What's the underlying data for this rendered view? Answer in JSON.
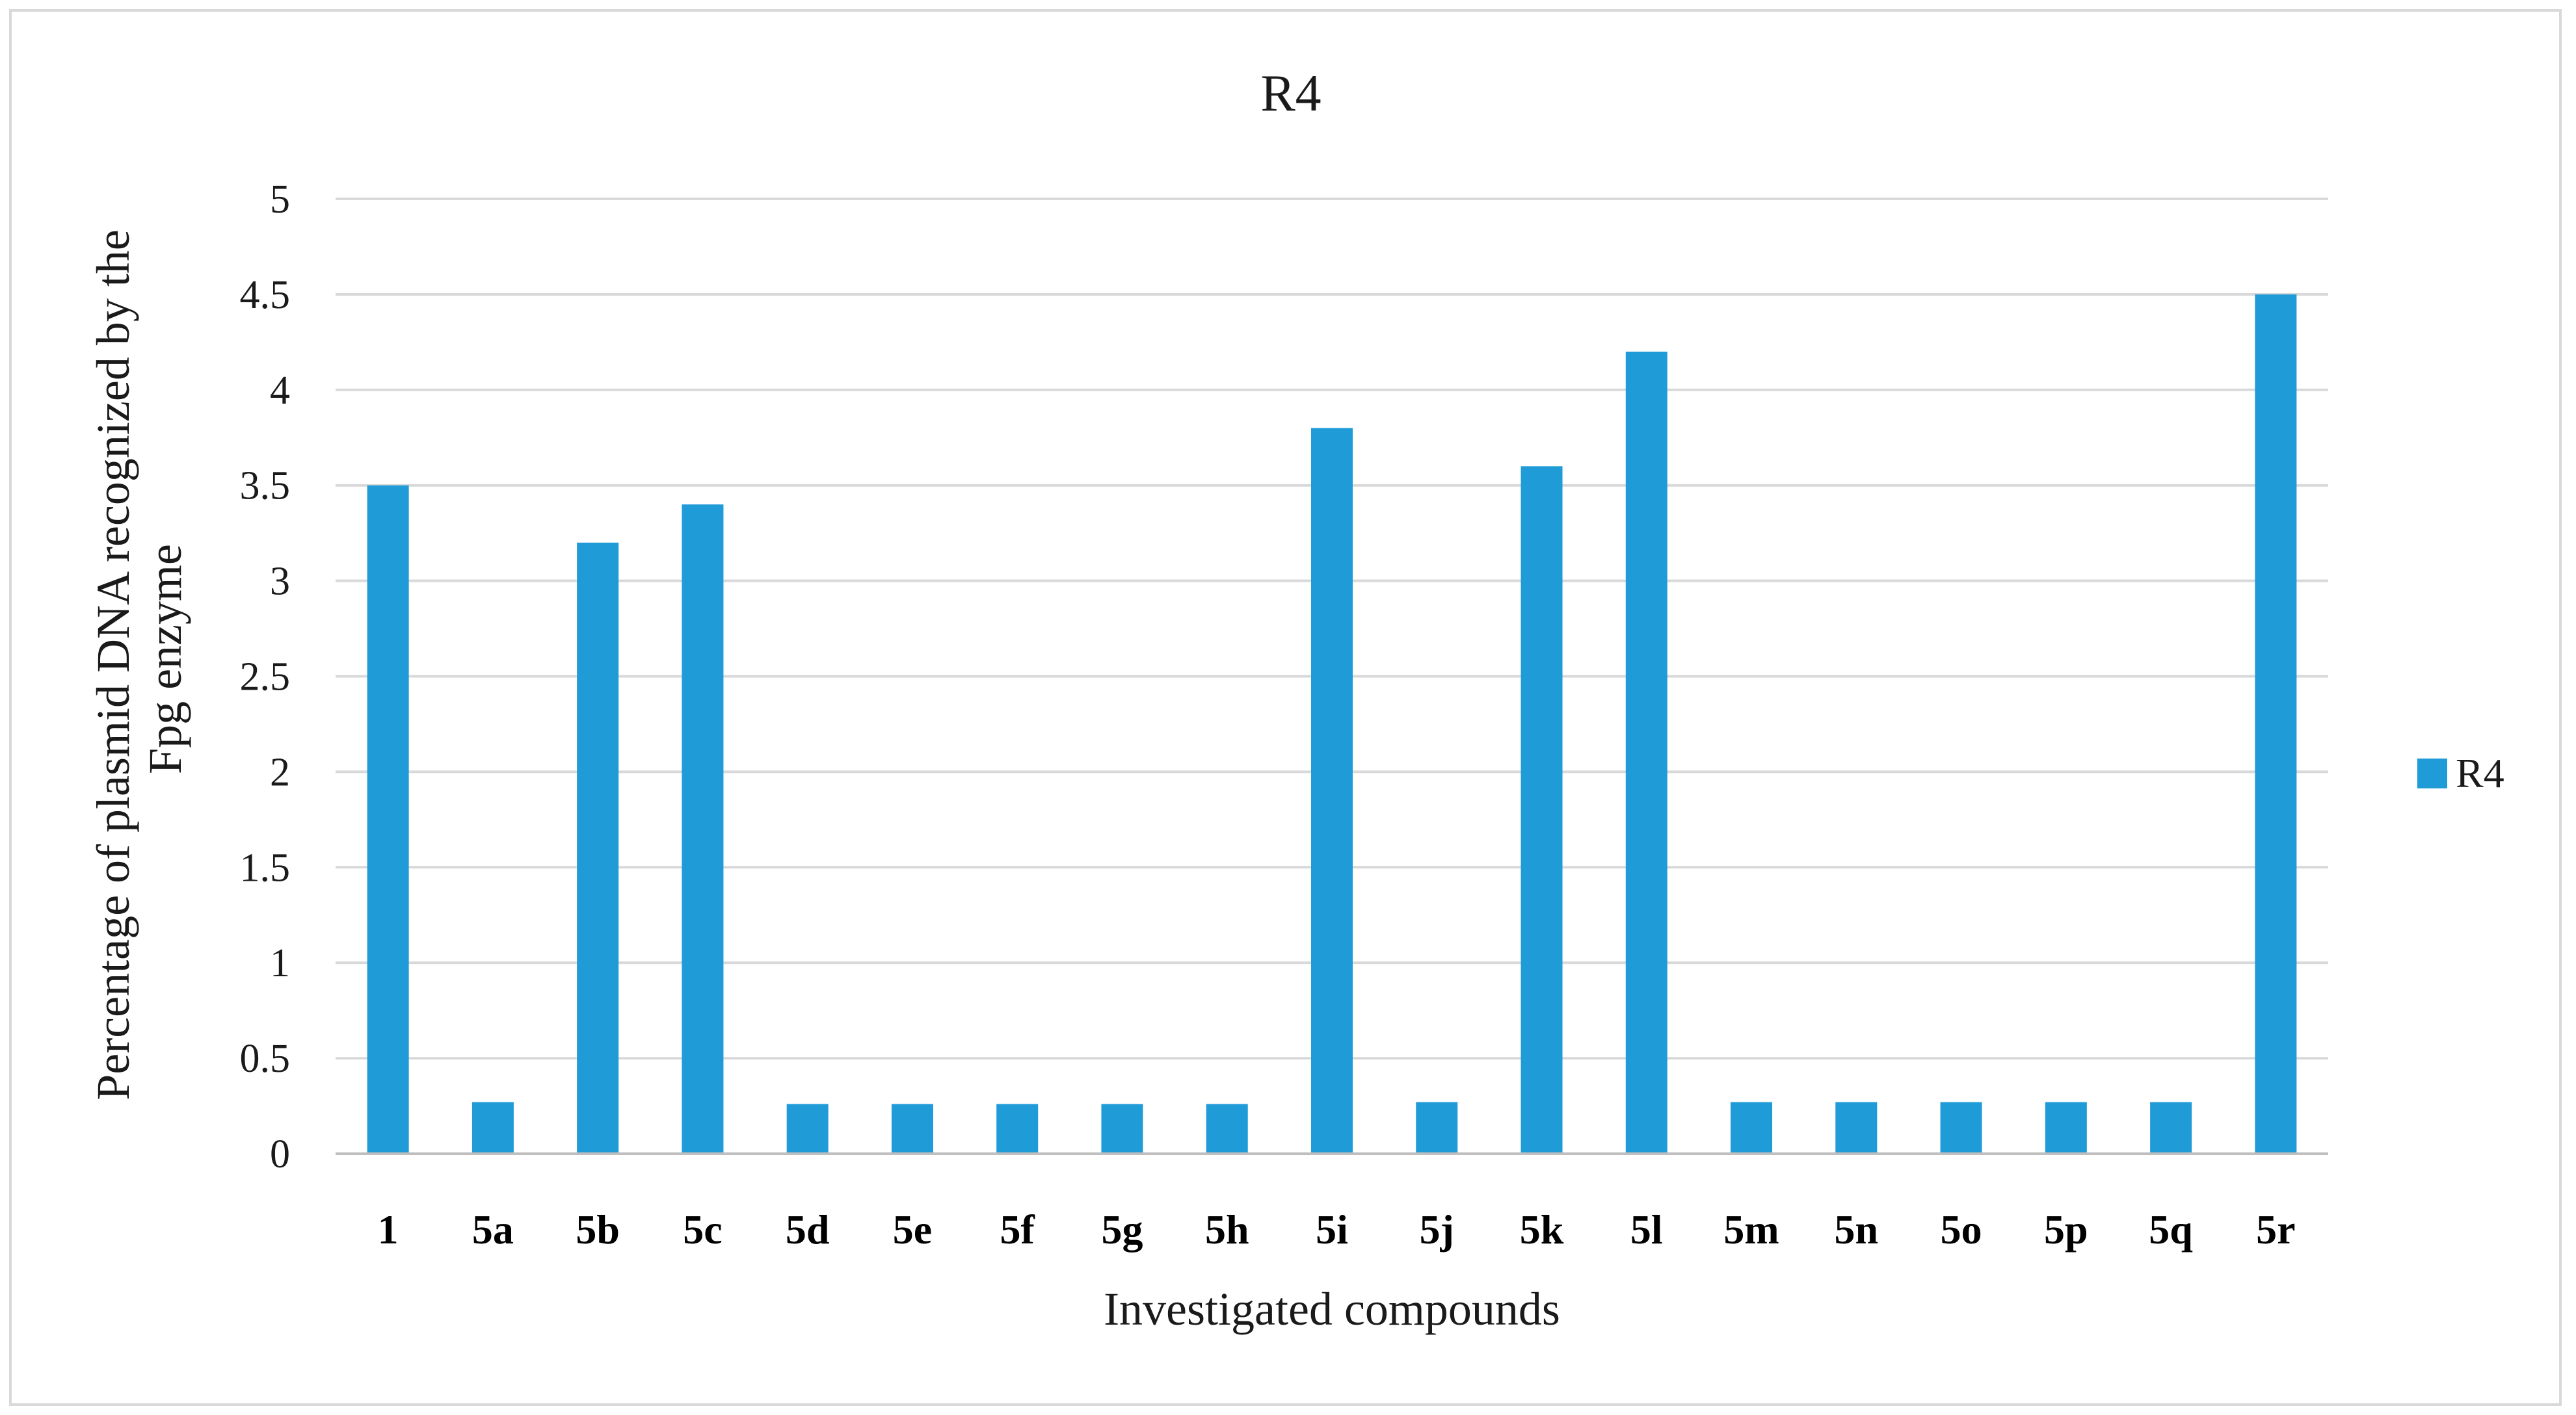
{
  "chart_data": {
    "type": "bar",
    "title": "R4",
    "xlabel": "Investigated compounds",
    "ylabel_lines": [
      "Percentage of plasmid DNA recognized by the",
      "Fpg enzyme"
    ],
    "categories": [
      "1",
      "5a",
      "5b",
      "5c",
      "5d",
      "5e",
      "5f",
      "5g",
      "5h",
      "5i",
      "5j",
      "5k",
      "5l",
      "5m",
      "5n",
      "5o",
      "5p",
      "5q",
      "5r"
    ],
    "series": [
      {
        "name": "R4",
        "color": "#1f9bd8",
        "values": [
          3.5,
          0.27,
          3.2,
          3.4,
          0.26,
          0.26,
          0.26,
          0.26,
          0.26,
          3.8,
          0.27,
          3.6,
          4.2,
          0.27,
          0.27,
          0.27,
          0.27,
          0.27,
          4.5
        ]
      }
    ],
    "ylim": [
      0,
      5
    ],
    "y_ticks": [
      "0",
      "0.5",
      "1",
      "1.5",
      "2",
      "2.5",
      "3",
      "3.5",
      "4",
      "4.5",
      "5"
    ],
    "y_tick_values": [
      0,
      0.5,
      1,
      1.5,
      2,
      2.5,
      3,
      3.5,
      4,
      4.5,
      5
    ],
    "grid": true,
    "legend_position": "right"
  }
}
